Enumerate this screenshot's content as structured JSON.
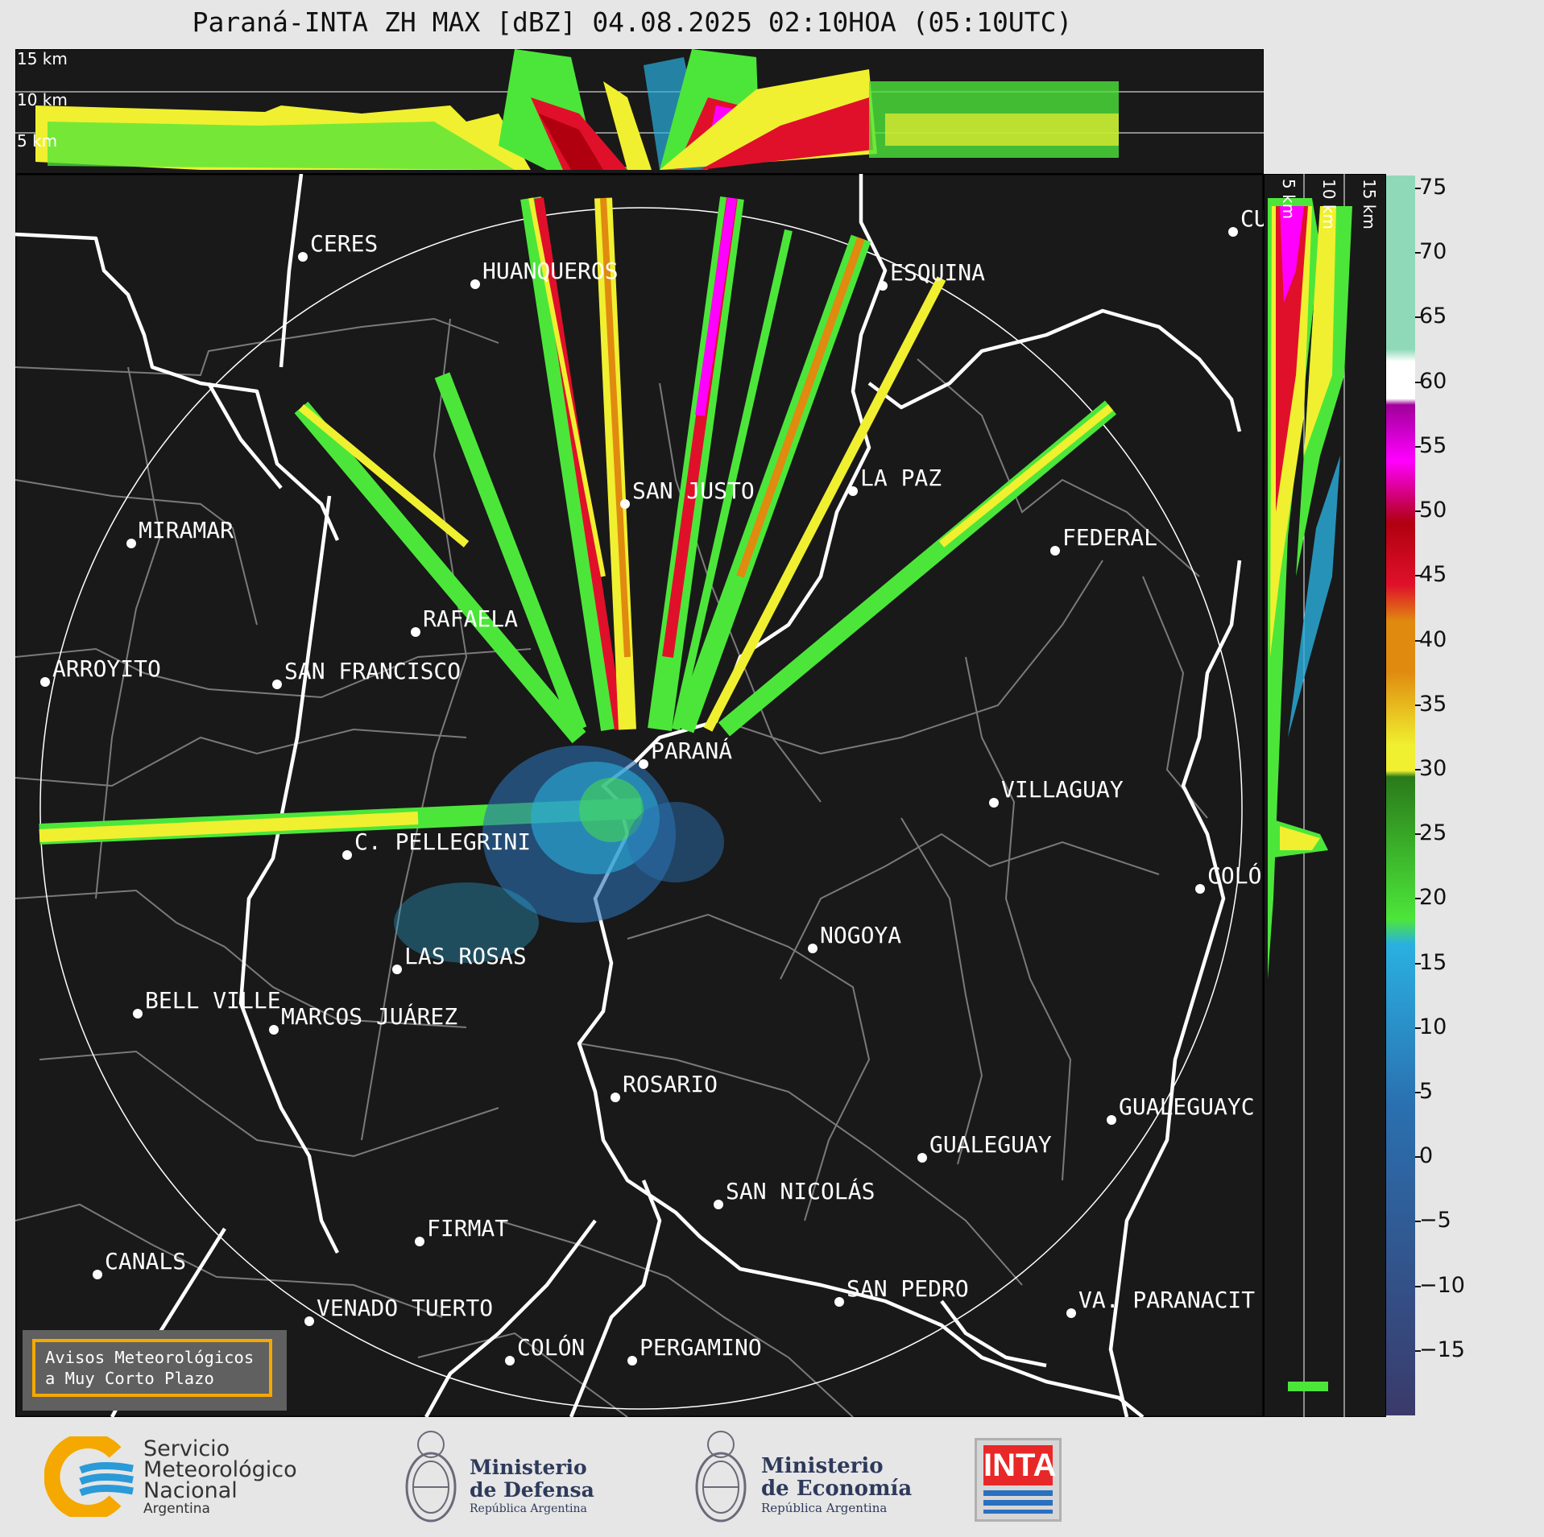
{
  "title": "Paraná-INTA ZH MAX [dBZ] 04.08.2025 02:10HOA (05:10UTC)",
  "top_panel": {
    "height_labels": [
      "15 km",
      "10 km",
      "5 km"
    ]
  },
  "side_panel": {
    "height_labels": [
      "5 km",
      "10 km",
      "15 km"
    ]
  },
  "colorbar": {
    "ticks": [
      "75",
      "70",
      "65",
      "60",
      "55",
      "50",
      "45",
      "40",
      "35",
      "30",
      "25",
      "20",
      "15",
      "10",
      "5",
      "0",
      "−5",
      "−10",
      "−15"
    ],
    "range": [
      -20,
      76
    ],
    "colors": {
      "teal_high": "#8fd9b8",
      "white": "#ffffff",
      "purple": "#a0009a",
      "magenta": "#ff00ff",
      "red": "#e0102a",
      "dark_red": "#b00010",
      "orange": "#e08a10",
      "yellow": "#f0f030",
      "green_dark": "#2a7a1a",
      "green_light": "#4ce63a",
      "cyan": "#2ab0e0",
      "blue": "#2a70b0",
      "navy": "#3a3a6a"
    }
  },
  "cities": [
    {
      "name": "CERES"
    },
    {
      "name": "HUANQUEROS"
    },
    {
      "name": "ESQUINA"
    },
    {
      "name": "CU"
    },
    {
      "name": "MIRAMAR"
    },
    {
      "name": "SAN JUSTO"
    },
    {
      "name": "LA PAZ"
    },
    {
      "name": "FEDERAL"
    },
    {
      "name": "RAFAELA"
    },
    {
      "name": "ARROYITO"
    },
    {
      "name": "SAN FRANCISCO"
    },
    {
      "name": "PARANÁ"
    },
    {
      "name": "VILLAGUAY"
    },
    {
      "name": "C. PELLEGRINI"
    },
    {
      "name": "COLÓ"
    },
    {
      "name": "NOGOYA"
    },
    {
      "name": "LAS ROSAS"
    },
    {
      "name": "BELL VILLE"
    },
    {
      "name": "MARCOS JUÁREZ"
    },
    {
      "name": "ROSARIO"
    },
    {
      "name": "GUALEGUAYC"
    },
    {
      "name": "GUALEGUAY"
    },
    {
      "name": "SAN NICOLÁS"
    },
    {
      "name": "FIRMAT"
    },
    {
      "name": "CANALS"
    },
    {
      "name": "SAN PEDRO"
    },
    {
      "name": "VA. PARANACIT"
    },
    {
      "name": "VENADO TUERTO"
    },
    {
      "name": "COLÓN"
    },
    {
      "name": "PERGAMINO"
    }
  ],
  "avisos": {
    "line1": "Avisos Meteorológicos",
    "line2": "a Muy Corto Plazo"
  },
  "footer": {
    "smn": {
      "line1": "Servicio",
      "line2": "Meteorológico",
      "line3": "Nacional",
      "line4": "Argentina"
    },
    "defensa": {
      "line1": "Ministerio",
      "line2": "de Defensa",
      "line3": "República Argentina"
    },
    "economia": {
      "line1": "Ministerio",
      "line2": "de Economía",
      "line3": "República Argentina"
    },
    "inta": {
      "label": "INTA"
    }
  }
}
